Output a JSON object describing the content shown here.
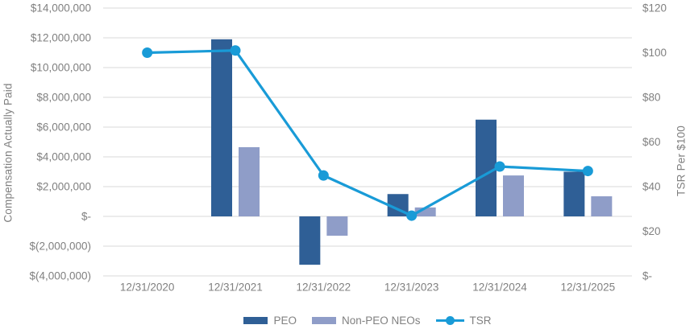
{
  "chart_data": {
    "type": "combo-bar-line",
    "title": "",
    "categories": [
      "12/31/2020",
      "12/31/2021",
      "12/31/2022",
      "12/31/2023",
      "12/31/2024",
      "12/31/2025"
    ],
    "series": [
      {
        "name": "PEO",
        "type": "bar",
        "axis": "left",
        "color": "#2F5F96",
        "values": [
          null,
          11900000,
          -3250000,
          1500000,
          6500000,
          3000000
        ]
      },
      {
        "name": "Non-PEO NEOs",
        "type": "bar",
        "axis": "left",
        "color": "#8F9DC8",
        "values": [
          null,
          4650000,
          -1300000,
          600000,
          2750000,
          1350000
        ]
      },
      {
        "name": "TSR",
        "type": "line",
        "axis": "right",
        "color": "#199BD7",
        "values": [
          100,
          101,
          45,
          27,
          49,
          47
        ]
      }
    ],
    "left_axis": {
      "title": "Compensation Actually Paid",
      "min": -4000000,
      "max": 14000000,
      "step": 2000000,
      "tick_labels": [
        "$14,000,000",
        "$12,000,000",
        "$10,000,000",
        "$8,000,000",
        "$6,000,000",
        "$4,000,000",
        "$2,000,000",
        "$-",
        "$(2,000,000)",
        "$(4,000,000)"
      ]
    },
    "right_axis": {
      "title": "TSR Per $100",
      "min": 0,
      "max": 120,
      "step": 20,
      "tick_labels": [
        "$120",
        "$100",
        "$80",
        "$60",
        "$40",
        "$20",
        "$-"
      ]
    },
    "legend": {
      "position": "bottom",
      "entries": [
        "PEO",
        "Non-PEO NEOs",
        "TSR"
      ]
    },
    "grid": "horizontal",
    "gridline_color": "#D9D9D9",
    "text_color": "#808080",
    "background": "#FFFFFF"
  }
}
